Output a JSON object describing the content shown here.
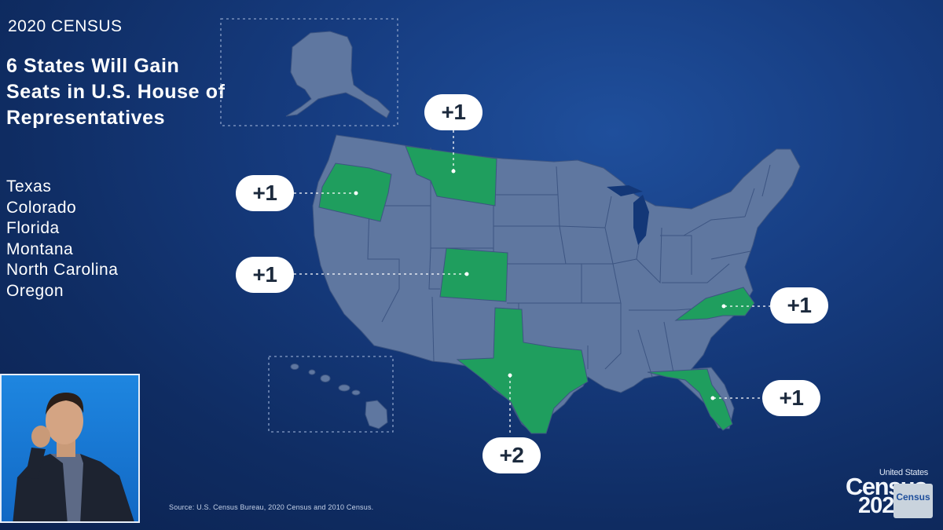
{
  "header": {
    "kicker": "2020 CENSUS",
    "title": "6 States Will Gain Seats in U.S. House of Representatives"
  },
  "states_list": [
    "Texas",
    "Colorado",
    "Florida",
    "Montana",
    "North Carolina",
    "Oregon"
  ],
  "badges": {
    "montana": "+1",
    "oregon": "+1",
    "colorado": "+1",
    "north_carolina": "+1",
    "florida": "+1",
    "texas": "+2"
  },
  "source": "Source: U.S. Census Bureau, 2020 Census and 2010 Census.",
  "logo": {
    "top": "United States",
    "word": "Census",
    "year": "2020",
    "mini": "Census"
  },
  "colors": {
    "background": "#133777",
    "state_fill": "#5f77a0",
    "state_border": "#3d5582",
    "gain_fill": "#1f9e5e",
    "badge_bg": "#ffffff",
    "badge_text": "#1c2a3d"
  }
}
